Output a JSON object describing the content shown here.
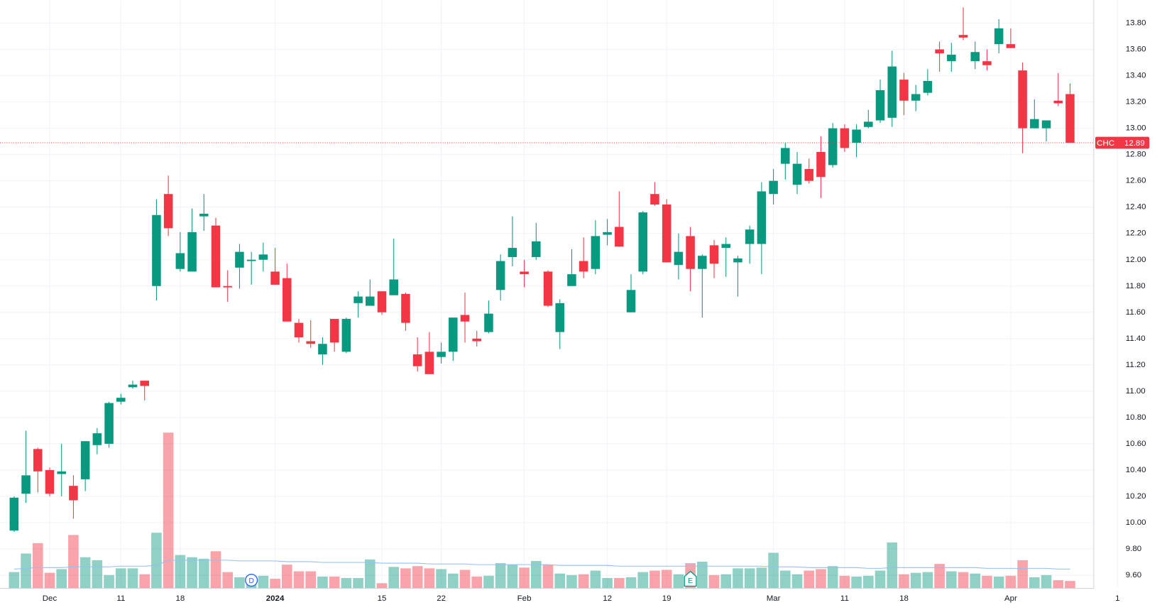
{
  "chart_data": {
    "type": "candlestick",
    "symbol": "CHC",
    "categories": [
      null,
      null,
      null,
      "Dec",
      null,
      null,
      null,
      null,
      null,
      "11",
      null,
      null,
      null,
      null,
      "18",
      null,
      null,
      null,
      null,
      null,
      null,
      null,
      "2024",
      null,
      null,
      null,
      null,
      null,
      null,
      null,
      null,
      "15",
      null,
      null,
      null,
      null,
      "22",
      null,
      null,
      null,
      null,
      null,
      null,
      "Feb",
      null,
      null,
      null,
      null,
      null,
      null,
      "12",
      null,
      null,
      null,
      null,
      "19",
      null,
      null,
      null,
      null,
      null,
      null,
      null,
      null,
      "Mar",
      null,
      null,
      null,
      null,
      null,
      "11",
      null,
      null,
      null,
      null,
      "18",
      null,
      null,
      null,
      null,
      null,
      null,
      null,
      null,
      "Apr",
      null,
      null,
      null,
      null,
      null
    ],
    "future_categories": [
      null,
      null,
      null,
      "1"
    ],
    "open": [
      9.94,
      10.22,
      10.56,
      10.4,
      10.37,
      10.28,
      10.33,
      10.59,
      10.6,
      10.92,
      11.03,
      11.08,
      11.8,
      12.5,
      11.93,
      11.91,
      12.33,
      12.26,
      11.8,
      11.94,
      11.99,
      12.0,
      11.91,
      11.86,
      11.52,
      11.38,
      11.28,
      11.55,
      11.3,
      11.67,
      11.65,
      11.76,
      11.73,
      11.74,
      11.28,
      11.3,
      11.26,
      11.3,
      11.58,
      11.4,
      11.45,
      11.77,
      12.02,
      11.91,
      12.02,
      11.91,
      11.45,
      11.8,
      11.99,
      11.93,
      12.19,
      12.25,
      11.6,
      11.91,
      12.5,
      12.42,
      11.96,
      12.18,
      11.93,
      12.11,
      12.09,
      11.98,
      12.12,
      12.12,
      12.5,
      12.73,
      12.57,
      12.69,
      12.82,
      12.72,
      13.0,
      12.89,
      13.01,
      13.06,
      13.08,
      13.37,
      13.21,
      13.27,
      13.6,
      13.51,
      13.71,
      13.51,
      13.51,
      13.64,
      13.64,
      13.44,
      13.0,
      13.0,
      13.21,
      13.26
    ],
    "high": [
      10.2,
      10.7,
      10.57,
      10.42,
      10.6,
      10.36,
      10.62,
      10.72,
      10.92,
      10.98,
      11.08,
      11.08,
      12.46,
      12.64,
      12.21,
      12.39,
      12.5,
      12.32,
      11.92,
      12.12,
      12.06,
      12.13,
      12.09,
      11.97,
      11.55,
      11.54,
      11.41,
      11.55,
      11.56,
      11.76,
      11.85,
      11.76,
      12.16,
      11.75,
      11.41,
      11.45,
      11.37,
      11.56,
      11.75,
      11.46,
      11.69,
      12.04,
      12.33,
      12.0,
      12.28,
      11.92,
      11.7,
      12.08,
      12.17,
      12.3,
      12.31,
      12.52,
      11.89,
      12.37,
      12.59,
      12.46,
      12.2,
      12.25,
      12.04,
      12.15,
      12.17,
      12.03,
      12.26,
      12.59,
      12.69,
      12.89,
      12.82,
      12.77,
      12.94,
      13.04,
      13.03,
      13.03,
      13.14,
      13.37,
      13.59,
      13.42,
      13.33,
      13.45,
      13.66,
      13.65,
      13.92,
      13.66,
      13.6,
      13.83,
      13.76,
      13.5,
      13.22,
      13.06,
      13.42,
      13.34
    ],
    "low": [
      9.93,
      10.15,
      10.23,
      10.2,
      10.2,
      10.03,
      10.24,
      10.52,
      10.57,
      10.9,
      11.02,
      10.93,
      11.69,
      12.18,
      11.91,
      11.91,
      12.22,
      11.79,
      11.68,
      11.78,
      11.81,
      11.91,
      11.81,
      11.53,
      11.37,
      11.33,
      11.2,
      11.3,
      11.29,
      11.56,
      11.65,
      11.58,
      11.73,
      11.46,
      11.15,
      11.13,
      11.21,
      11.23,
      11.37,
      11.34,
      11.44,
      11.69,
      11.95,
      11.79,
      12.0,
      11.64,
      11.32,
      11.8,
      11.86,
      11.89,
      12.11,
      12.1,
      11.6,
      11.89,
      12.41,
      11.98,
      11.85,
      11.76,
      11.56,
      11.86,
      11.87,
      11.72,
      11.97,
      11.89,
      12.42,
      12.61,
      12.5,
      12.58,
      12.47,
      12.7,
      12.82,
      12.78,
      13.0,
      13.04,
      13.01,
      13.1,
      13.13,
      13.25,
      13.43,
      13.43,
      13.67,
      13.45,
      13.44,
      13.57,
      13.61,
      12.81,
      13.0,
      12.9,
      13.17,
      12.89
    ],
    "close": [
      10.19,
      10.36,
      10.39,
      10.22,
      10.39,
      10.17,
      10.62,
      10.68,
      10.91,
      10.95,
      11.05,
      11.04,
      12.34,
      12.24,
      12.05,
      12.21,
      12.35,
      11.79,
      11.79,
      12.06,
      12.0,
      12.04,
      11.81,
      11.53,
      11.41,
      11.36,
      11.36,
      11.37,
      11.55,
      11.72,
      11.72,
      11.6,
      11.85,
      11.52,
      11.19,
      11.13,
      11.3,
      11.56,
      11.53,
      11.38,
      11.59,
      11.99,
      12.09,
      11.89,
      12.14,
      11.65,
      11.67,
      11.89,
      11.91,
      12.18,
      12.21,
      12.1,
      11.77,
      12.36,
      12.42,
      11.98,
      12.06,
      11.93,
      12.03,
      11.97,
      12.12,
      12.01,
      12.23,
      12.52,
      12.6,
      12.85,
      12.73,
      12.6,
      12.63,
      13.0,
      12.85,
      12.99,
      13.05,
      13.29,
      13.47,
      13.21,
      13.26,
      13.36,
      13.57,
      13.56,
      13.69,
      13.58,
      13.48,
      13.76,
      13.61,
      13.0,
      13.07,
      13.06,
      13.19,
      12.89
    ],
    "volume": [
      22,
      47,
      61,
      21,
      26,
      72,
      42,
      38,
      18,
      27,
      27,
      19,
      75,
      210,
      45,
      42,
      40,
      50,
      22,
      15,
      17,
      17,
      13,
      32,
      23,
      23,
      16,
      16,
      14,
      14,
      39,
      7,
      29,
      27,
      30,
      27,
      26,
      20,
      25,
      16,
      17,
      34,
      32,
      28,
      37,
      32,
      20,
      18,
      19,
      24,
      14,
      14,
      15,
      22,
      24,
      25,
      19,
      34,
      36,
      18,
      19,
      27,
      27,
      28,
      48,
      24,
      19,
      24,
      26,
      30,
      17,
      16,
      17,
      24,
      62,
      19,
      21,
      22,
      33,
      23,
      22,
      20,
      17,
      16,
      17,
      38,
      15,
      18,
      11,
      10
    ],
    "volume_ma": [
      26,
      27,
      28,
      28,
      28,
      29,
      29,
      29,
      29,
      30,
      30,
      30,
      31,
      38,
      38,
      38,
      38,
      38,
      38,
      37,
      37,
      37,
      37,
      36,
      36,
      36,
      35,
      35,
      35,
      35,
      35,
      34,
      34,
      34,
      34,
      33,
      33,
      33,
      33,
      32,
      32,
      32,
      32,
      32,
      32,
      32,
      31,
      31,
      31,
      31,
      31,
      30,
      30,
      30,
      30,
      30,
      30,
      30,
      30,
      30,
      30,
      30,
      30,
      30,
      29,
      29,
      29,
      28,
      28,
      28,
      28,
      28,
      27,
      27,
      28,
      28,
      28,
      28,
      28,
      28,
      28,
      28,
      27,
      27,
      27,
      27,
      27,
      27,
      26,
      26
    ],
    "up_color": "#089981",
    "down_color": "#f23645",
    "volume_ma_color": "#90bff9",
    "ylim": [
      9.5,
      13.975
    ],
    "yticks": [
      {
        "value": 9.6,
        "label": "9.60"
      },
      {
        "value": 9.8,
        "label": "9.80"
      },
      {
        "value": 10.0,
        "label": "10.00"
      },
      {
        "value": 10.2,
        "label": "10.20"
      },
      {
        "value": 10.4,
        "label": "10.40"
      },
      {
        "value": 10.6,
        "label": "10.60"
      },
      {
        "value": 10.8,
        "label": "10.80"
      },
      {
        "value": 11.0,
        "label": "11.00"
      },
      {
        "value": 11.2,
        "label": "11.20"
      },
      {
        "value": 11.4,
        "label": "11.40"
      },
      {
        "value": 11.6,
        "label": "11.60"
      },
      {
        "value": 11.8,
        "label": "11.80"
      },
      {
        "value": 12.0,
        "label": "12.00"
      },
      {
        "value": 12.2,
        "label": "12.20"
      },
      {
        "value": 12.4,
        "label": "12.40"
      },
      {
        "value": 12.6,
        "label": "12.60"
      },
      {
        "value": 12.8,
        "label": "12.80"
      },
      {
        "value": 13.0,
        "label": "13.00"
      },
      {
        "value": 13.2,
        "label": "13.20"
      },
      {
        "value": 13.4,
        "label": "13.40"
      },
      {
        "value": 13.6,
        "label": "13.60"
      },
      {
        "value": 13.8,
        "label": "13.80"
      }
    ],
    "last_price": {
      "value": 12.89,
      "label": "12.89"
    },
    "events": [
      {
        "label": "D",
        "index": 20
      },
      {
        "label": "E",
        "index": 57
      }
    ],
    "grid": true
  }
}
